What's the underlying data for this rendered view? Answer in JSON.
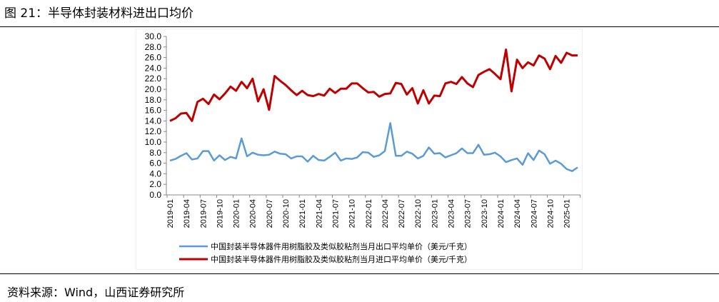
{
  "title": "图 21：半导体封装材料进出口均价",
  "source": "资料来源：Wind，山西证券研究所",
  "chart_data": {
    "type": "line",
    "title": "图 21：半导体封装材料进出口均价",
    "xlabel": "",
    "ylabel": "",
    "ylim": [
      0,
      30
    ],
    "yticks": [
      "0.0",
      "2.0",
      "4.0",
      "6.0",
      "8.0",
      "10.0",
      "12.0",
      "14.0",
      "16.0",
      "18.0",
      "20.0",
      "22.0",
      "24.0",
      "26.0",
      "28.0",
      "30.0"
    ],
    "x_start": "2019-01",
    "x_end": "2025-03",
    "xtick_labels": [
      "2019-01",
      "2019-04",
      "2019-07",
      "2019-10",
      "2020-01",
      "2020-04",
      "2020-07",
      "2020-10",
      "2021-01",
      "2021-04",
      "2021-07",
      "2021-10",
      "2022-01",
      "2022-04",
      "2022-07",
      "2022-10",
      "2023-01",
      "2023-04",
      "2023-07",
      "2023-10",
      "2024-01",
      "2024-04",
      "2024-07",
      "2024-10",
      "2025-01"
    ],
    "legend_position": "bottom",
    "series": [
      {
        "name": "中国封装半导体器件用树脂胶及类似胶粘剂当月出口平均单价（美元/千克）",
        "color": "#5b9bd5",
        "values": [
          6.5,
          6.8,
          7.4,
          7.9,
          6.7,
          6.9,
          8.3,
          8.3,
          6.5,
          7.5,
          6.6,
          7.2,
          6.9,
          10.7,
          7.3,
          8.0,
          7.6,
          7.5,
          7.6,
          8.2,
          7.8,
          7.7,
          6.9,
          7.3,
          7.3,
          6.3,
          7.4,
          6.6,
          6.5,
          7.2,
          8.0,
          6.5,
          6.9,
          6.8,
          7.1,
          8.1,
          8.0,
          7.2,
          7.5,
          8.3,
          13.6,
          7.4,
          7.4,
          8.2,
          7.8,
          6.9,
          7.4,
          9.0,
          7.8,
          7.9,
          7.1,
          7.5,
          7.9,
          8.8,
          7.9,
          7.9,
          9.5,
          7.6,
          7.7,
          8.0,
          7.3,
          6.2,
          6.6,
          6.9,
          5.7,
          7.9,
          6.6,
          8.4,
          7.7,
          5.9,
          6.5,
          5.9,
          4.9,
          4.5,
          5.2
        ]
      },
      {
        "name": "中国封装半导体器件用树脂胶及类似胶粘剂当月进口平均单价（美元/千克）",
        "color": "#c00000",
        "values": [
          14.0,
          14.5,
          15.4,
          15.5,
          14.0,
          17.6,
          18.2,
          17.2,
          19.0,
          18.1,
          19.2,
          20.5,
          19.7,
          21.4,
          20.2,
          22.0,
          17.7,
          20.0,
          16.1,
          22.5,
          21.6,
          20.8,
          19.8,
          18.9,
          19.7,
          18.9,
          18.7,
          19.1,
          18.8,
          20.1,
          19.3,
          20.1,
          20.1,
          21.1,
          21.1,
          20.2,
          19.4,
          19.5,
          18.6,
          19.1,
          19.2,
          21.2,
          21.0,
          19.0,
          20.2,
          17.3,
          19.8,
          17.3,
          18.8,
          18.7,
          21.1,
          21.4,
          21.0,
          22.3,
          21.1,
          20.4,
          22.7,
          23.3,
          23.8,
          22.9,
          21.9,
          27.5,
          19.6,
          25.6,
          24.0,
          25.1,
          24.5,
          26.4,
          25.8,
          23.8,
          26.3,
          25.0,
          26.9,
          26.4,
          26.4
        ]
      }
    ]
  }
}
